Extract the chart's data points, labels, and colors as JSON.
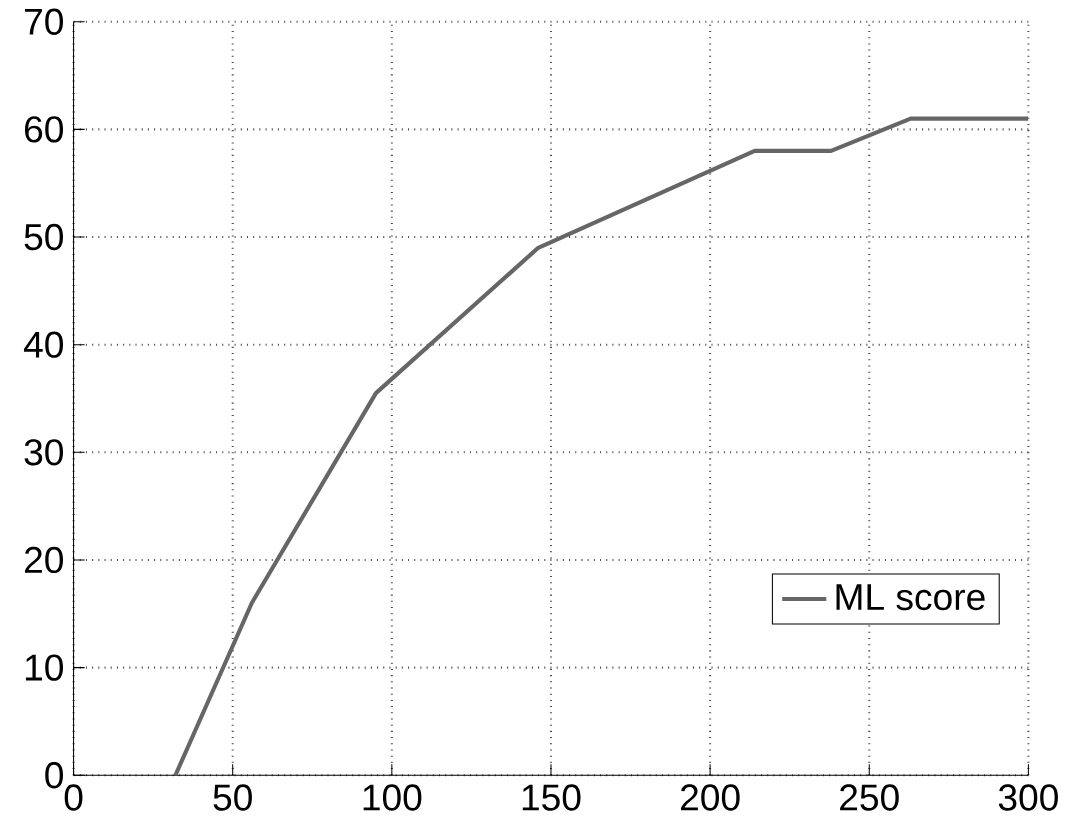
{
  "chart_data": {
    "type": "line",
    "x": [
      32,
      56,
      95,
      146,
      214,
      238,
      263,
      300
    ],
    "series": [
      {
        "name": "ML score",
        "color": "#666666",
        "values": [
          0,
          16,
          35.5,
          49,
          58,
          58,
          61,
          61
        ]
      }
    ],
    "xlim": [
      0,
      300
    ],
    "ylim": [
      0,
      70
    ],
    "xticks": [
      0,
      50,
      100,
      150,
      200,
      250,
      300
    ],
    "yticks": [
      0,
      10,
      20,
      30,
      40,
      50,
      60,
      70
    ],
    "grid": true,
    "legend": "bottom right",
    "marker": "none",
    "line_style": "solid"
  }
}
